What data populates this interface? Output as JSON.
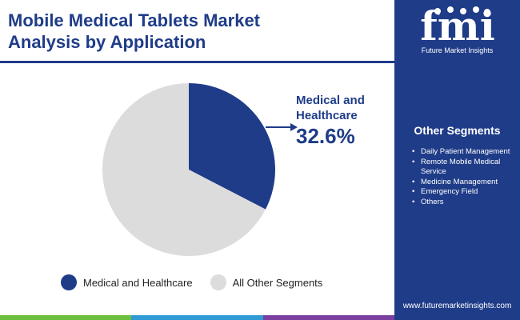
{
  "header": {
    "title_line1": "Mobile Medical Tablets Market",
    "title_line2": "Analysis by Application"
  },
  "colors": {
    "primary": "#1f3c88",
    "other": "#dcdcdc",
    "strip": [
      "#6cbf3a",
      "#2e9bd6",
      "#7b3fa0",
      "#1f3c88"
    ]
  },
  "chart_data": {
    "type": "pie",
    "slices": [
      {
        "label": "Medical and Healthcare",
        "value": 32.6,
        "color": "#1f3c88"
      },
      {
        "label": "All Other Segments",
        "value": 67.4,
        "color": "#dcdcdc"
      }
    ],
    "annotation": {
      "label_line1": "Medical and",
      "label_line2": "Healthcare",
      "value": "32.6%"
    },
    "legend_placement": "bottom"
  },
  "legend": {
    "items": [
      {
        "label": "Medical and Healthcare",
        "color": "#1f3c88"
      },
      {
        "label": "All Other Segments",
        "color": "#dcdcdc"
      }
    ]
  },
  "panel": {
    "logo_text": "fmi",
    "logo_subtitle": "Future Market Insights",
    "segments_title": "Other Segments",
    "segments": [
      "Daily Patient Management",
      "Remote Mobile Medical Service",
      "Medicine Management",
      "Emergency Field",
      "Others"
    ],
    "url": "www.futuremarketinsights.com"
  }
}
